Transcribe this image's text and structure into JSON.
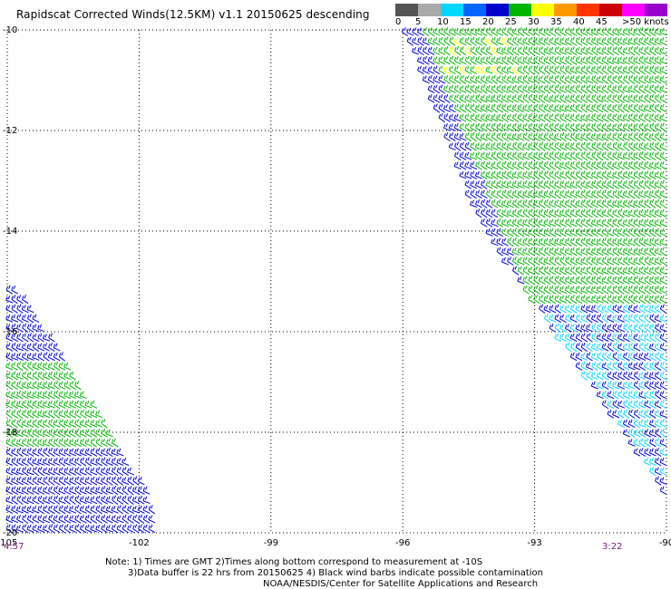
{
  "title": "Rapidscat Corrected Winds(12.5KM) v1.1 20150625 descending",
  "scale": {
    "labels": [
      "0",
      "5",
      "10",
      "15",
      "20",
      "25",
      "30",
      "35",
      "40",
      "45",
      ">50 knots"
    ],
    "colors": [
      "#555555",
      "#aaaaaa",
      "#00d8ff",
      "#0066ff",
      "#0000cc",
      "#00b400",
      "#ffff00",
      "#ff9900",
      "#ff3300",
      "#cc0000",
      "#ff00ff",
      "#9900cc"
    ]
  },
  "chart_data": {
    "type": "map",
    "xlim": [
      -105,
      -90
    ],
    "ylim": [
      -20,
      -10
    ],
    "x_ticks": [
      "-105",
      "-102",
      "-99",
      "-96",
      "-93",
      "-90"
    ],
    "y_ticks": [
      "-10",
      "-12",
      "-14",
      "-16",
      "-18",
      "-20"
    ],
    "x_tick_values": [
      -105,
      -102,
      -99,
      -96,
      -93,
      -90
    ],
    "y_tick_values": [
      -10,
      -12,
      -14,
      -16,
      -18,
      -20
    ],
    "swaths": [
      {
        "name": "east",
        "start_time": "3:22",
        "polygon": [
          [
            -96.0,
            -10.0
          ],
          [
            -90.0,
            -10.0
          ],
          [
            -90.0,
            -19.3
          ],
          [
            -94.2,
            -14.0
          ]
        ]
      },
      {
        "name": "west",
        "start_time": "4:57",
        "polygon": [
          [
            -105.0,
            -15.1
          ],
          [
            -104.6,
            -15.3
          ],
          [
            -101.8,
            -19.2
          ],
          [
            -101.6,
            -20.0
          ],
          [
            -105.0,
            -20.0
          ]
        ]
      }
    ],
    "wind_speed_bands_knots": [
      {
        "min": 10,
        "max": 15,
        "color": "#00d8ff"
      },
      {
        "min": 15,
        "max": 20,
        "color": "#0000cc"
      },
      {
        "min": 20,
        "max": 25,
        "color": "#00b400"
      },
      {
        "min": 25,
        "max": 30,
        "color": "#ffff00"
      }
    ]
  },
  "time_labels": {
    "left": "4:57",
    "right": "3:22"
  },
  "notes": [
    "Note: 1) Times are GMT 2)Times along bottom correspond to measurement at -10S",
    "3)Data buffer is 22 hrs from 20150625 4) Black wind barbs indicate possible contamination",
    "NOAA/NESDIS/Center for Satellite Applications and Research"
  ]
}
